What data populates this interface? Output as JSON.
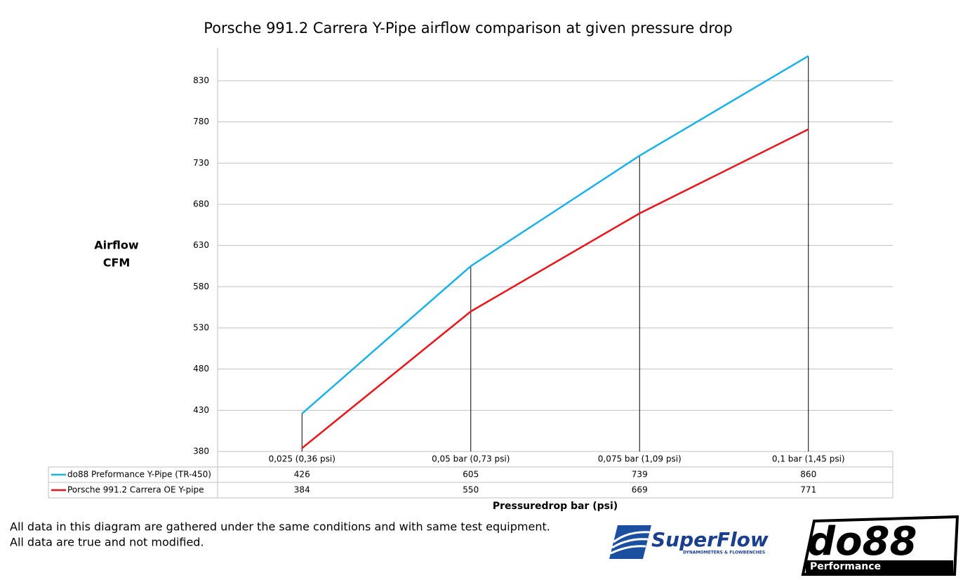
{
  "chart_data": {
    "type": "line",
    "title": "Porsche 991.2 Carrera Y-Pipe airflow comparison at given pressure drop",
    "y_label": [
      "Airflow",
      "CFM"
    ],
    "x_label": "Pressuredrop bar (psi)",
    "categories": [
      "0,025 (0,36 psi)",
      "0,05 bar (0,73 psi)",
      "0,075 bar (1,09 psi)",
      "0,1 bar (1,45 psi)"
    ],
    "series": [
      {
        "name": "do88 Preformance Y-Pipe (TR-450)",
        "color": "#1ab0e8",
        "values": [
          426,
          605,
          739,
          860
        ]
      },
      {
        "name": "Porsche 991.2 Carrera OE Y-pipe",
        "color": "#e8141a",
        "values": [
          384,
          550,
          669,
          771
        ]
      }
    ],
    "ylim": [
      380,
      870
    ],
    "yticks": [
      380,
      430,
      480,
      530,
      580,
      630,
      680,
      730,
      780,
      830
    ],
    "grid": true,
    "drop_lines": true,
    "data_table": true
  },
  "footnote": [
    "All data in this diagram are gathered under the same conditions and with same test equipment.",
    "All data are true and not modified."
  ],
  "logos": {
    "superflow": "SuperFlow",
    "superflow_tagline": "DYNAMOMETERS & FLOWBENCHES",
    "do88": "do88",
    "do88_tagline": "Performance"
  }
}
